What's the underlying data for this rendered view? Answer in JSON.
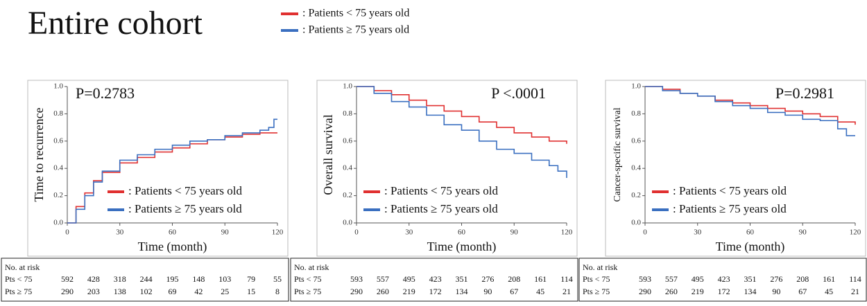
{
  "header": {
    "title": "Entire cohort",
    "legend": [
      {
        "name": ": Patients < 75 years old",
        "color": "#e03030"
      },
      {
        "name": ": Patients ≥ 75 years old",
        "color": "#3a6fc0"
      }
    ]
  },
  "chart_data": [
    {
      "type": "line",
      "steps": true,
      "ylabel": "Time to recurrence",
      "xlabel": "Time (month)",
      "annotation": {
        "text": "P=0.2783",
        "color": "#111111"
      },
      "legend": "lower right",
      "xlim": [
        0,
        120
      ],
      "xticks": [
        0,
        30,
        60,
        90,
        120
      ],
      "ylim": [
        0,
        1
      ],
      "yticks": [
        {
          "value": 0,
          "label": "0.0"
        },
        0.2,
        0.4,
        0.6,
        0.8,
        {
          "value": 1,
          "label": "1.0"
        }
      ],
      "series": [
        {
          "name": ": Patients < 75 years old",
          "color": "#e03030",
          "x": [
            0,
            5,
            10,
            15,
            20,
            30,
            40,
            50,
            60,
            70,
            80,
            90,
            100,
            110,
            120
          ],
          "values": [
            0,
            0.12,
            0.22,
            0.31,
            0.37,
            0.44,
            0.48,
            0.52,
            0.55,
            0.58,
            0.61,
            0.63,
            0.65,
            0.66,
            0.66
          ]
        },
        {
          "name": ": Patients ≥ 75 years old",
          "color": "#3a6fc0",
          "x": [
            0,
            5,
            10,
            15,
            20,
            30,
            40,
            50,
            60,
            70,
            80,
            90,
            100,
            110,
            115,
            118,
            120
          ],
          "values": [
            0,
            0.1,
            0.2,
            0.3,
            0.38,
            0.46,
            0.5,
            0.54,
            0.57,
            0.6,
            0.61,
            0.64,
            0.66,
            0.68,
            0.7,
            0.76,
            0.76
          ]
        }
      ],
      "risk_table": {
        "title": "No. at risk",
        "rows": [
          {
            "label": "Pts < 75",
            "values": [
              592,
              428,
              318,
              244,
              195,
              148,
              103,
              79,
              55
            ]
          },
          {
            "label": "Pts ≥ 75",
            "values": [
              290,
              203,
              138,
              102,
              69,
              42,
              25,
              15,
              8
            ]
          }
        ]
      }
    },
    {
      "type": "line",
      "steps": true,
      "ylabel": "Overall survival",
      "xlabel": "Time (month)",
      "annotation": {
        "text": "P <.0001",
        "color": "#e02020"
      },
      "legend": "lower left",
      "xlim": [
        0,
        120
      ],
      "xticks": [
        0,
        30,
        60,
        90,
        120
      ],
      "ylim": [
        0,
        1
      ],
      "yticks": [
        {
          "value": 0,
          "label": "0.0"
        },
        0.2,
        0.4,
        0.6,
        0.8,
        {
          "value": 1,
          "label": "1.0"
        }
      ],
      "series": [
        {
          "name": ": Patients < 75 years old",
          "color": "#e03030",
          "x": [
            0,
            10,
            20,
            30,
            40,
            50,
            60,
            70,
            80,
            90,
            100,
            110,
            120
          ],
          "values": [
            1,
            0.97,
            0.94,
            0.9,
            0.86,
            0.82,
            0.78,
            0.74,
            0.7,
            0.66,
            0.63,
            0.6,
            0.58
          ]
        },
        {
          "name": ": Patients ≥ 75 years old",
          "color": "#3a6fc0",
          "x": [
            0,
            10,
            20,
            30,
            40,
            50,
            60,
            70,
            80,
            90,
            100,
            110,
            115,
            120
          ],
          "values": [
            1,
            0.95,
            0.89,
            0.85,
            0.79,
            0.72,
            0.68,
            0.6,
            0.54,
            0.51,
            0.46,
            0.42,
            0.38,
            0.33
          ]
        }
      ],
      "risk_table": {
        "title": "No. at risk",
        "rows": [
          {
            "label": "Pts < 75",
            "values": [
              593,
              557,
              495,
              423,
              351,
              276,
              208,
              161,
              114
            ]
          },
          {
            "label": "Pts ≥ 75",
            "values": [
              290,
              260,
              219,
              172,
              134,
              90,
              67,
              45,
              21
            ]
          }
        ]
      }
    },
    {
      "type": "line",
      "steps": true,
      "ylabel": "Cancer-specific survival",
      "xlabel": "Time (month)",
      "annotation": {
        "text": "P=0.2981",
        "color": "#111111"
      },
      "legend": "lower left",
      "xlim": [
        0,
        120
      ],
      "xticks": [
        0,
        30,
        60,
        90,
        120
      ],
      "ylim": [
        0,
        1
      ],
      "yticks": [
        {
          "value": 0,
          "label": "0.0"
        },
        0.2,
        0.4,
        0.6,
        0.8,
        {
          "value": 1,
          "label": "1.0"
        }
      ],
      "series": [
        {
          "name": ": Patients < 75 years old",
          "color": "#e03030",
          "x": [
            0,
            10,
            20,
            30,
            40,
            50,
            60,
            70,
            80,
            90,
            100,
            110,
            120
          ],
          "values": [
            1,
            0.98,
            0.95,
            0.93,
            0.9,
            0.88,
            0.86,
            0.84,
            0.82,
            0.8,
            0.78,
            0.74,
            0.72
          ]
        },
        {
          "name": ": Patients ≥ 75 years old",
          "color": "#3a6fc0",
          "x": [
            0,
            10,
            20,
            30,
            40,
            50,
            60,
            70,
            80,
            90,
            100,
            110,
            115,
            120
          ],
          "values": [
            1,
            0.97,
            0.95,
            0.93,
            0.89,
            0.86,
            0.84,
            0.81,
            0.79,
            0.76,
            0.75,
            0.69,
            0.64,
            0.64
          ]
        }
      ],
      "risk_table": {
        "title": "No. at risk",
        "rows": [
          {
            "label": "Pts < 75",
            "values": [
              593,
              557,
              495,
              423,
              351,
              276,
              208,
              161,
              114
            ]
          },
          {
            "label": "Pts ≥ 75",
            "values": [
              290,
              260,
              219,
              172,
              134,
              90,
              67,
              45,
              21
            ]
          }
        ]
      }
    }
  ]
}
